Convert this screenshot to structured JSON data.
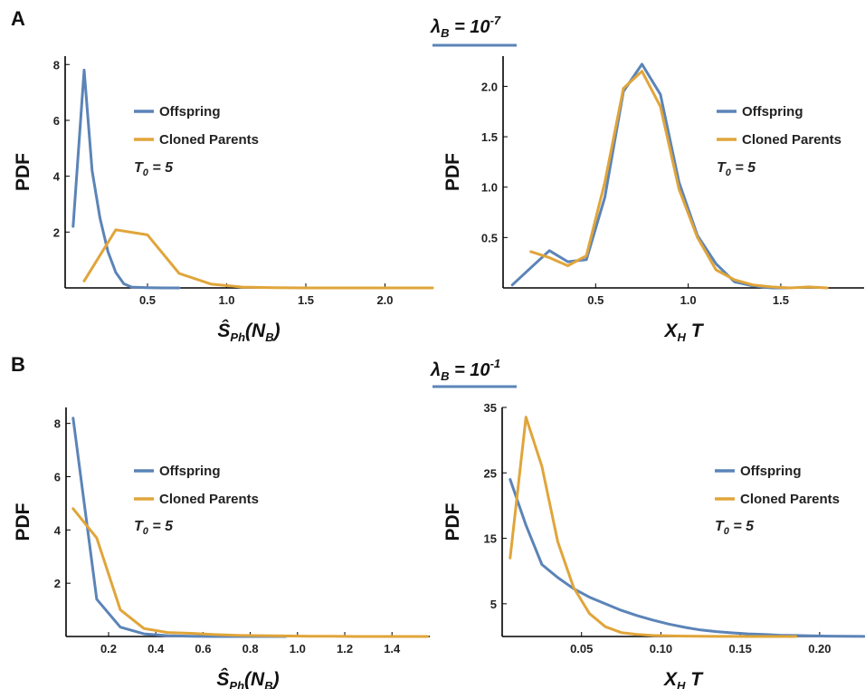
{
  "figure": {
    "panel_labels": [
      "A",
      "B"
    ],
    "lambda_labels": [
      {
        "symbol": "λ",
        "sub": "B",
        "eq": " = 10",
        "exp": "-7"
      },
      {
        "symbol": "λ",
        "sub": "B",
        "eq": " = 10",
        "exp": "-1"
      }
    ],
    "colors": {
      "offspring": "#5b84b8",
      "parents": "#e0a53a",
      "lambda_underline": "#5b84b8"
    }
  },
  "chart_data": [
    {
      "id": "A-left",
      "type": "line",
      "ylabel": "PDF",
      "xlabel": {
        "main": "Ŝ",
        "sub": "Ph",
        "rest": "(N",
        "rest_sub": "B",
        "close": ")"
      },
      "xlim": [
        -0.02,
        2.3
      ],
      "ylim": [
        0,
        8.3
      ],
      "xticks": [
        0.5,
        1.0,
        1.5,
        2.0
      ],
      "xtick_labels": [
        "0.5",
        "1.0",
        "1.5",
        "2.0"
      ],
      "yticks": [
        2,
        4,
        6,
        8
      ],
      "ytick_labels": [
        "2",
        "4",
        "6",
        "8"
      ],
      "annotation": {
        "main": "T",
        "sub": "0",
        "rest": " = 5"
      },
      "series": [
        {
          "name": "Offspring",
          "color": "#5b84b8",
          "x": [
            0.03,
            0.1,
            0.15,
            0.2,
            0.25,
            0.3,
            0.35,
            0.4,
            0.5,
            0.6,
            0.7
          ],
          "y": [
            2.2,
            7.8,
            4.2,
            2.5,
            1.3,
            0.55,
            0.15,
            0.03,
            0.01,
            0.0,
            0.0
          ]
        },
        {
          "name": "Cloned Parents",
          "color": "#e0a53a",
          "x": [
            0.1,
            0.3,
            0.5,
            0.7,
            0.9,
            1.1,
            1.3,
            1.5,
            1.7,
            1.9,
            2.1,
            2.3
          ],
          "y": [
            0.25,
            2.08,
            1.9,
            0.52,
            0.14,
            0.03,
            0.01,
            0.0,
            0.0,
            0.0,
            0.0,
            0.0
          ]
        }
      ]
    },
    {
      "id": "A-right",
      "type": "line",
      "ylabel": "PDF",
      "xlabel": {
        "main": "X",
        "sub": "H",
        "rest": " T"
      },
      "xlim": [
        0.0,
        1.95
      ],
      "ylim": [
        0,
        2.3
      ],
      "xticks": [
        0.5,
        1.0,
        1.5
      ],
      "xtick_labels": [
        "0.5",
        "1.0",
        "1.5"
      ],
      "yticks": [
        0.5,
        1.0,
        1.5,
        2.0
      ],
      "ytick_labels": [
        "0.5",
        "1.0",
        "1.5",
        "2.0"
      ],
      "annotation": {
        "main": "T",
        "sub": "0",
        "rest": " = 5"
      },
      "series": [
        {
          "name": "Offspring",
          "color": "#5b84b8",
          "x": [
            0.05,
            0.15,
            0.25,
            0.35,
            0.45,
            0.55,
            0.65,
            0.75,
            0.85,
            0.95,
            1.05,
            1.15,
            1.25,
            1.35,
            1.45,
            1.55
          ],
          "y": [
            0.03,
            0.2,
            0.37,
            0.26,
            0.28,
            0.9,
            1.95,
            2.22,
            1.92,
            1.05,
            0.52,
            0.24,
            0.06,
            0.02,
            0.0,
            0.0
          ]
        },
        {
          "name": "Cloned Parents",
          "color": "#e0a53a",
          "x": [
            0.15,
            0.25,
            0.35,
            0.45,
            0.55,
            0.65,
            0.75,
            0.85,
            0.95,
            1.05,
            1.15,
            1.25,
            1.35,
            1.45,
            1.55,
            1.65,
            1.75
          ],
          "y": [
            0.36,
            0.3,
            0.22,
            0.32,
            1.05,
            1.98,
            2.15,
            1.8,
            0.98,
            0.5,
            0.18,
            0.08,
            0.03,
            0.01,
            0.0,
            0.01,
            0.0
          ]
        }
      ]
    },
    {
      "id": "B-left",
      "type": "line",
      "ylabel": "PDF",
      "xlabel": {
        "main": "Ŝ",
        "sub": "Ph",
        "rest": "(N",
        "rest_sub": "B",
        "close": ")"
      },
      "xlim": [
        0.02,
        1.56
      ],
      "ylim": [
        0,
        8.6
      ],
      "xticks": [
        0.2,
        0.4,
        0.6,
        0.8,
        1.0,
        1.2,
        1.4
      ],
      "xtick_labels": [
        "0.2",
        "0.4",
        "0.6",
        "0.8",
        "1.0",
        "1.2",
        "1.4"
      ],
      "yticks": [
        2,
        4,
        6,
        8
      ],
      "ytick_labels": [
        "2",
        "4",
        "6",
        "8"
      ],
      "annotation": {
        "main": "T",
        "sub": "0",
        "rest": " = 5"
      },
      "series": [
        {
          "name": "Offspring",
          "color": "#5b84b8",
          "x": [
            0.05,
            0.15,
            0.25,
            0.35,
            0.45,
            0.55,
            0.65,
            0.75,
            0.85,
            0.95
          ],
          "y": [
            8.2,
            1.4,
            0.35,
            0.1,
            0.03,
            0.01,
            0.0,
            0.0,
            0.0,
            0.0
          ]
        },
        {
          "name": "Cloned Parents",
          "color": "#e0a53a",
          "x": [
            0.05,
            0.15,
            0.25,
            0.35,
            0.45,
            0.55,
            0.65,
            0.75,
            0.85,
            0.95,
            1.05,
            1.15,
            1.25,
            1.35,
            1.45,
            1.55
          ],
          "y": [
            4.8,
            3.7,
            1.0,
            0.3,
            0.15,
            0.12,
            0.07,
            0.04,
            0.03,
            0.02,
            0.01,
            0.01,
            0.0,
            0.0,
            0.0,
            0.0
          ]
        }
      ]
    },
    {
      "id": "B-right",
      "type": "line",
      "ylabel": "PDF",
      "xlabel": {
        "main": "X",
        "sub": "H",
        "rest": " T"
      },
      "xlim": [
        0.0,
        0.228
      ],
      "ylim": [
        0,
        35
      ],
      "xticks": [
        0.05,
        0.1,
        0.15,
        0.2
      ],
      "xtick_labels": [
        "0.05",
        "0.10",
        "0.15",
        "0.20"
      ],
      "yticks": [
        5,
        15,
        25,
        35
      ],
      "ytick_labels": [
        "5",
        "15",
        "25",
        "35"
      ],
      "annotation": {
        "main": "T",
        "sub": "0",
        "rest": " = 5"
      },
      "series": [
        {
          "name": "Offspring",
          "color": "#5b84b8",
          "x": [
            0.005,
            0.015,
            0.025,
            0.035,
            0.045,
            0.055,
            0.065,
            0.075,
            0.085,
            0.095,
            0.105,
            0.115,
            0.125,
            0.135,
            0.145,
            0.155,
            0.165,
            0.175,
            0.185,
            0.195,
            0.205,
            0.215,
            0.228
          ],
          "y": [
            24,
            17,
            11,
            9,
            7.3,
            6,
            5,
            4,
            3.2,
            2.5,
            1.9,
            1.4,
            1.0,
            0.75,
            0.55,
            0.4,
            0.3,
            0.2,
            0.15,
            0.1,
            0.05,
            0.03,
            0.02
          ]
        },
        {
          "name": "Cloned Parents",
          "color": "#e0a53a",
          "x": [
            0.005,
            0.015,
            0.025,
            0.035,
            0.045,
            0.055,
            0.065,
            0.075,
            0.085,
            0.095,
            0.105,
            0.115,
            0.125,
            0.135,
            0.145,
            0.155,
            0.165,
            0.175,
            0.185
          ],
          "y": [
            12,
            33.5,
            26,
            14.5,
            7.5,
            3.5,
            1.5,
            0.6,
            0.3,
            0.15,
            0.1,
            0.05,
            0.03,
            0.02,
            0.01,
            0.0,
            0.0,
            0.0,
            0.0
          ]
        }
      ]
    }
  ]
}
